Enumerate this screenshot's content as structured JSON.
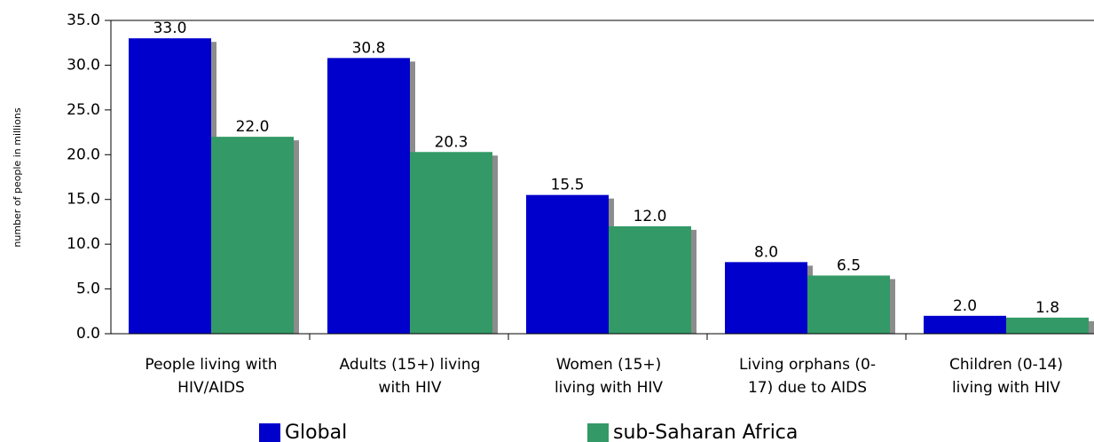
{
  "chart_data": {
    "type": "bar",
    "y_label": "number of people in millions",
    "categories": [
      [
        "People living with",
        "HIV/AIDS"
      ],
      [
        "Adults (15+) living",
        "with HIV"
      ],
      [
        "Women (15+)",
        "living with HIV"
      ],
      [
        "Living orphans (0-",
        "17) due to AIDS"
      ],
      [
        "Children (0-14)",
        "living with HIV"
      ]
    ],
    "series": [
      {
        "name": "Global",
        "color": "#0000cc",
        "values": [
          33,
          30.8,
          15.5,
          8,
          2
        ],
        "value_labels": [
          "33.0",
          "30.8",
          "15.5",
          "8.0",
          "2.0"
        ]
      },
      {
        "name": "sub-Saharan Africa",
        "color": "#339966",
        "values": [
          22,
          20.3,
          12,
          6.5,
          1.8
        ],
        "value_labels": [
          "22.0",
          "20.3",
          "12.0",
          "6.5",
          "1.8"
        ]
      }
    ],
    "ylim": [
      0,
      35
    ],
    "yticks": [
      {
        "value": 0,
        "label": "0.0"
      },
      {
        "value": 5,
        "label": "5.0"
      },
      {
        "value": 10,
        "label": "10.0"
      },
      {
        "value": 15,
        "label": "15.0"
      },
      {
        "value": 20,
        "label": "20.0"
      },
      {
        "value": 25,
        "label": "25.0"
      },
      {
        "value": 30,
        "label": "30.0"
      },
      {
        "value": 35,
        "label": "35.0"
      }
    ],
    "legend": "bottom"
  }
}
